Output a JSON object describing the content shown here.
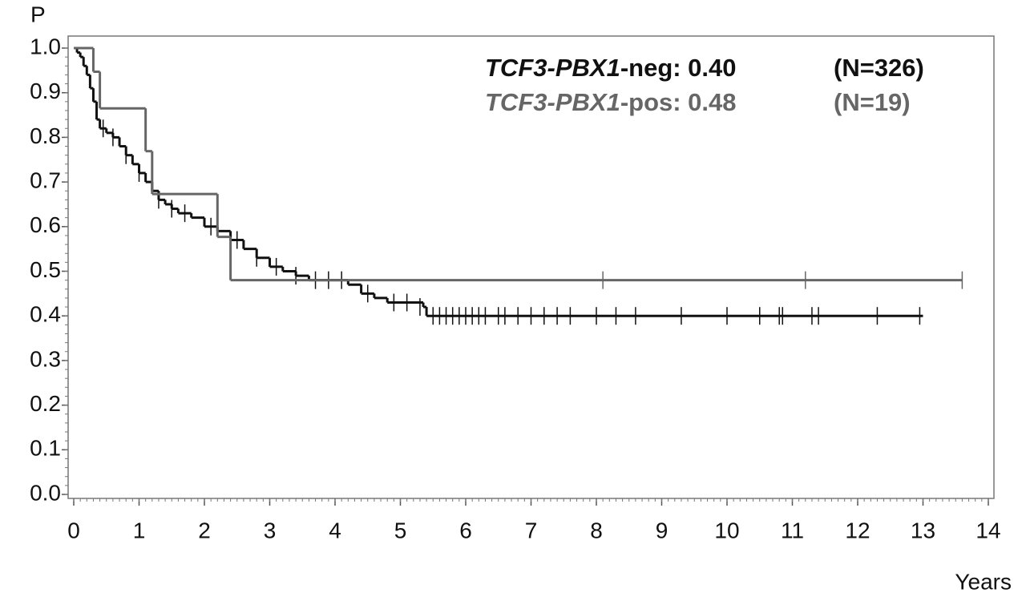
{
  "chart_data": {
    "type": "km",
    "y_label": "P",
    "x_label": "Years",
    "xlim": [
      0,
      14
    ],
    "ylim": [
      0,
      1
    ],
    "xticks": [
      0,
      1,
      2,
      3,
      4,
      5,
      6,
      7,
      8,
      9,
      10,
      11,
      12,
      13,
      14
    ],
    "yticks": [
      {
        "value": 0,
        "label": "0.0"
      },
      0.1,
      0.2,
      0.3,
      0.4,
      0.5,
      0.6,
      0.7,
      0.8,
      0.9,
      {
        "value": 1,
        "label": "1.0"
      }
    ],
    "series": [
      {
        "name": "TCF3-PBX1-neg: 0.40",
        "n_label": "(N=326)",
        "color": "#111111",
        "x": [
          0,
          0.05,
          0.1,
          0.15,
          0.2,
          0.25,
          0.3,
          0.35,
          0.4,
          0.5,
          0.6,
          0.7,
          0.8,
          0.9,
          1.0,
          1.1,
          1.2,
          1.3,
          1.4,
          1.5,
          1.6,
          1.8,
          2.0,
          2.2,
          2.4,
          2.6,
          2.8,
          3.0,
          3.2,
          3.4,
          3.6,
          4.2,
          4.4,
          4.6,
          4.8,
          5.35,
          5.4,
          13.0
        ],
        "values": [
          1.0,
          0.99,
          0.98,
          0.96,
          0.94,
          0.91,
          0.88,
          0.84,
          0.82,
          0.81,
          0.8,
          0.78,
          0.76,
          0.74,
          0.72,
          0.7,
          0.68,
          0.66,
          0.65,
          0.64,
          0.63,
          0.62,
          0.6,
          0.59,
          0.57,
          0.55,
          0.53,
          0.51,
          0.5,
          0.49,
          0.48,
          0.47,
          0.45,
          0.44,
          0.43,
          0.42,
          0.4,
          0.4
        ],
        "censored_x": [
          0.45,
          0.6,
          0.8,
          1.0,
          1.3,
          1.5,
          1.7,
          2.1,
          2.5,
          2.8,
          3.1,
          3.4,
          3.7,
          3.9,
          4.1,
          4.5,
          4.9,
          5.1,
          5.3,
          5.5,
          5.6,
          5.7,
          5.8,
          5.9,
          6.0,
          6.1,
          6.2,
          6.3,
          6.5,
          6.6,
          6.8,
          7.0,
          7.2,
          7.4,
          7.6,
          8.0,
          8.3,
          8.6,
          9.3,
          10.0,
          10.5,
          10.8,
          10.85,
          11.3,
          11.4,
          12.3,
          12.95
        ],
        "censored_values": [
          0.82,
          0.8,
          0.76,
          0.72,
          0.66,
          0.64,
          0.63,
          0.6,
          0.57,
          0.53,
          0.51,
          0.49,
          0.48,
          0.48,
          0.48,
          0.45,
          0.43,
          0.43,
          0.42,
          0.4,
          0.4,
          0.4,
          0.4,
          0.4,
          0.4,
          0.4,
          0.4,
          0.4,
          0.4,
          0.4,
          0.4,
          0.4,
          0.4,
          0.4,
          0.4,
          0.4,
          0.4,
          0.4,
          0.4,
          0.4,
          0.4,
          0.4,
          0.4,
          0.4,
          0.4,
          0.4,
          0.4
        ]
      },
      {
        "name": "TCF3-PBX1-pos: 0.48",
        "n_label": "(N=19)",
        "color": "#666666",
        "x": [
          0,
          0.3,
          0.4,
          1.1,
          1.2,
          2.2,
          2.4,
          13.6
        ],
        "values": [
          1.0,
          0.947,
          0.865,
          0.769,
          0.673,
          0.577,
          0.48,
          0.48
        ],
        "censored_x": [
          8.1,
          11.2,
          13.6
        ],
        "censored_values": [
          0.48,
          0.48,
          0.48
        ]
      }
    ]
  }
}
